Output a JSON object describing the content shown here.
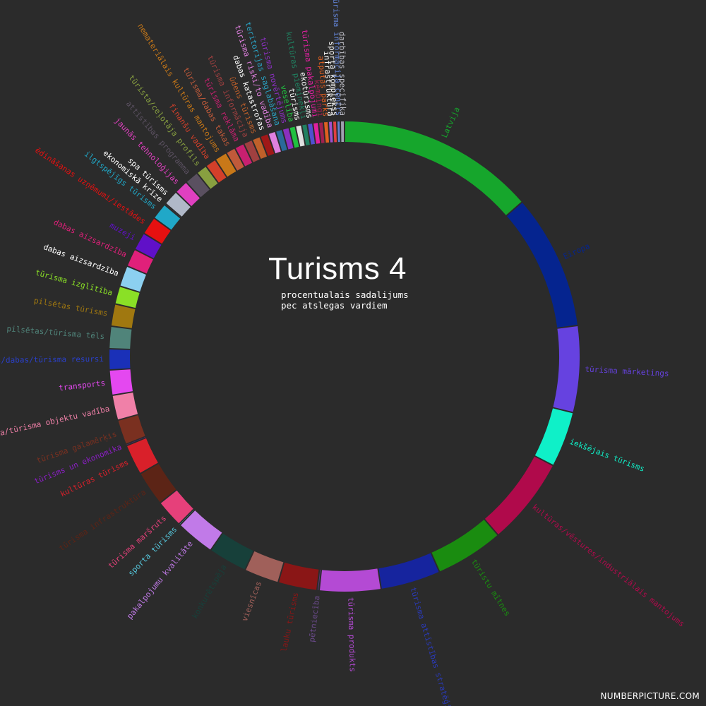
{
  "chart_data": {
    "type": "pie",
    "title": "Turisms 4",
    "subtitle_lines": [
      "procentualais sadalijums",
      "pec atslegas vardiem"
    ],
    "categories": [
      "Latvija",
      "Eiropa",
      "tūrisma mārketings",
      "iekšējais tūrisms",
      "kultūras/vēstures/industriālais mantojums",
      "tūristu mītnes",
      "tūrisma attīstības stratēģija",
      "tūrisma produkts",
      "pētniecība",
      "lauku tūrisms",
      "viesnīcas",
      "konkurētspēja",
      "pakalpojumu kvalitāte",
      "sporta tūrisms",
      "tūrisma maršruts",
      "tūrisma infrastruktūra",
      "kultūras tūrisms",
      "tūrisms un ekonomika",
      "tūrisma galamērķis",
      "tūrisma/tūrisma objektu vadība",
      "transports",
      "kultūras/dabas/tūrisma resursi",
      "pilsētas/tūrisma tēls",
      "pilsētas tūrisms",
      "tūrisma izglītība",
      "dabas aizsardzība",
      "dabas aizsardzība",
      "muzeji",
      "ēdināšanas uzņēmumi/iestādes",
      "ilgtspējīgs tūrisms",
      "ekonomiskā krīze",
      "spa tūrisms",
      "jaunās tehnoloģijas",
      "attīstības programma",
      "tūrista/ceļotāja profils",
      "finanšu vadība",
      "nemateriālais kultūras mantojums",
      "tūrisma/dabas takas",
      "tūrisma reklāma",
      "tūrisma informācija",
      "ūdens tūrisms",
      "dabas katastrofas",
      "tūrisma riski/to vadība",
      "teritorijas saglabāšana",
      "tūrisma novērtējums",
      "veselība",
      "tūrisms",
      "kultūras pieminekļi",
      "ekotūrisms",
      "tūrisma pakalpojumi",
      "kempingi",
      "atpūtas parks",
      "infrastruktūra",
      "sporta komplekss",
      "tūrisma informācija centrs",
      "darbības specifika"
    ],
    "values": [
      14.2,
      9.7,
      6.2,
      4.0,
      6.3,
      4.9,
      4.3,
      4.4,
      0.15,
      2.8,
      2.5,
      2.8,
      2.8,
      0.1,
      2.0,
      2.5,
      2.2,
      0.1,
      1.8,
      1.8,
      1.8,
      1.5,
      1.6,
      1.6,
      1.3,
      1.5,
      1.3,
      1.3,
      1.3,
      1.2,
      0.1,
      1.1,
      1.0,
      1.0,
      0.8,
      0.8,
      0.9,
      0.7,
      0.7,
      0.65,
      0.6,
      0.6,
      0.55,
      0.5,
      0.5,
      0.45,
      0.45,
      0.4,
      0.4,
      0.4,
      0.35,
      0.35,
      0.3,
      0.3,
      0.25,
      0.3
    ],
    "colors": [
      "#16a62c",
      "#05248f",
      "#6642e0",
      "#0ff0c8",
      "#b00a4b",
      "#1a8c10",
      "#16249e",
      "#b44ad4",
      "#5c3a7a",
      "#8a1616",
      "#a0605a",
      "#17403a",
      "#c17ae8",
      "#56c8de",
      "#e6407a",
      "#5c2416",
      "#d9202a",
      "#8a1ec4",
      "#7a3020",
      "#f080a8",
      "#e448f0",
      "#1a30b8",
      "#50847a",
      "#a07810",
      "#8ae026",
      "#8cd0f0",
      "#e0207a",
      "#6010c8",
      "#e61010",
      "#20a8c8",
      "#4a4a58",
      "#b0b8c8",
      "#e040c0",
      "#5a5060",
      "#88a040",
      "#d4402a",
      "#c87818",
      "#c05a3a",
      "#c82070",
      "#a04040",
      "#c0602a",
      "#a01818",
      "#e080e0",
      "#2a6a9a",
      "#8a30c0",
      "#20c040",
      "#e0e0e0",
      "#208060",
      "#5050d0",
      "#e020a0",
      "#a02050",
      "#e06020",
      "#a050d0",
      "#e04040",
      "#6080d0",
      "#a0a0b0"
    ],
    "label_colors": [
      "#16a62c",
      "#05248f",
      "#6642e0",
      "#0ff0c8",
      "#b00a4b",
      "#1a8c10",
      "#2a3ab8",
      "#b44ad4",
      "#6a4a8a",
      "#8a1616",
      "#a0605a",
      "#17403a",
      "#c17ae8",
      "#56c8de",
      "#e6407a",
      "#5c2416",
      "#d9202a",
      "#8a1ec4",
      "#7a3020",
      "#f080a8",
      "#e448f0",
      "#2a40c8",
      "#50847a",
      "#a07810",
      "#8ae026",
      "#ffffff",
      "#e0207a",
      "#6010c8",
      "#e61010",
      "#20a8c8",
      "#ffffff",
      "#ffffff",
      "#e040c0",
      "#5a5060",
      "#88a040",
      "#d4402a",
      "#c87818",
      "#c05a3a",
      "#c82070",
      "#a04040",
      "#c0602a",
      "#ffffff",
      "#e080e0",
      "#2aa0c0",
      "#8a30c0",
      "#20c040",
      "#ffffff",
      "#208060",
      "#ffffff",
      "#e020a0",
      "#a02050",
      "#e06020",
      "#ffffff",
      "#ffffff",
      "#6080d0",
      "#c0c0c8"
    ],
    "legend": "none",
    "grid": false
  },
  "watermark": "NUMBERPICTURE.COM"
}
